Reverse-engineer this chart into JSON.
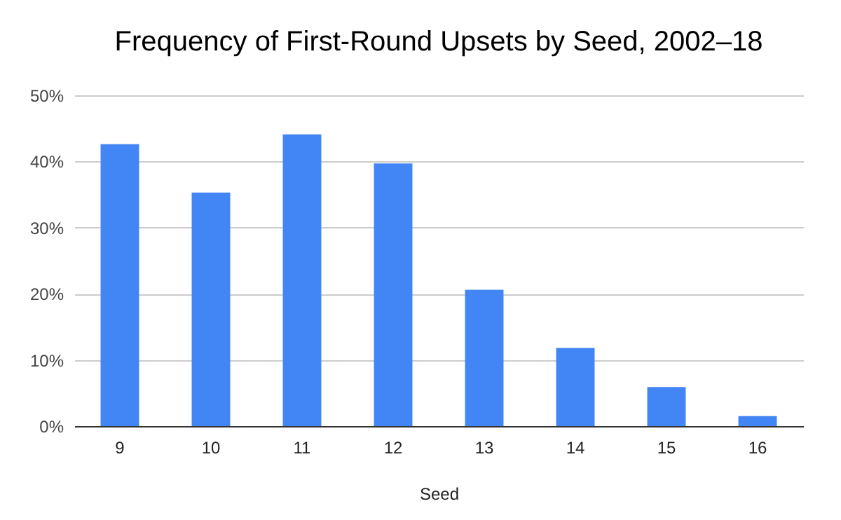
{
  "chart_data": {
    "type": "bar",
    "title": "Frequency of First-Round Upsets by Seed, 2002–18",
    "xlabel": "Seed",
    "categories": [
      "9",
      "10",
      "11",
      "12",
      "13",
      "14",
      "15",
      "16"
    ],
    "values": [
      42.6,
      35.3,
      44.1,
      39.7,
      20.6,
      11.8,
      5.9,
      1.5
    ],
    "color": "#4285f4",
    "ylim": [
      0,
      50
    ],
    "yticks": [
      {
        "value": 0,
        "label": "0%"
      },
      {
        "value": 10,
        "label": "10%"
      },
      {
        "value": 20,
        "label": "20%"
      },
      {
        "value": 30,
        "label": "30%"
      },
      {
        "value": 40,
        "label": "40%"
      },
      {
        "value": 50,
        "label": "50%"
      }
    ],
    "grid": "y"
  }
}
